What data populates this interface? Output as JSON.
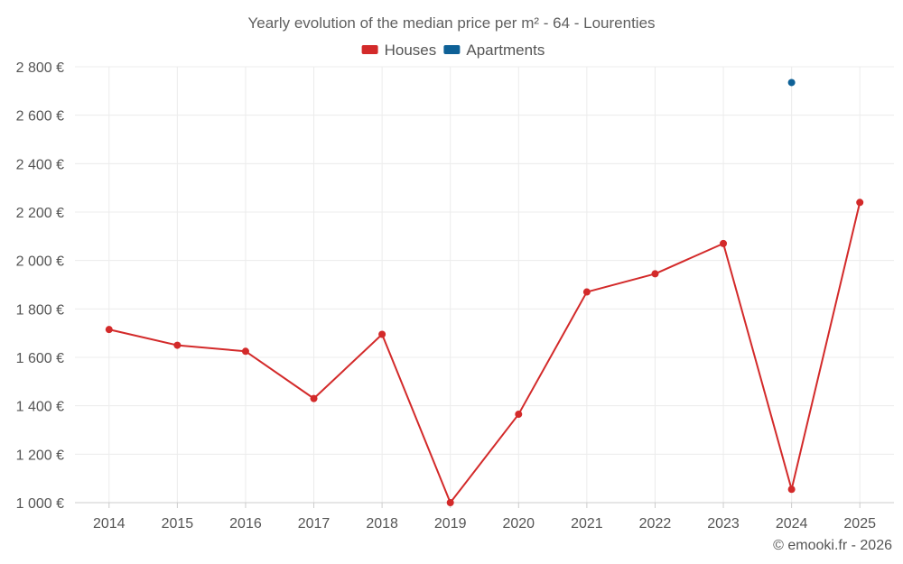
{
  "chart_data": {
    "type": "line",
    "title": "Yearly evolution of the median price per m² - 64 - Lourenties",
    "categories": [
      "2014",
      "2015",
      "2016",
      "2017",
      "2018",
      "2019",
      "2020",
      "2021",
      "2022",
      "2023",
      "2024",
      "2025"
    ],
    "series": [
      {
        "name": "Houses",
        "color": "#d32a2a",
        "values": [
          1715,
          1650,
          1625,
          1430,
          1695,
          1000,
          1365,
          1870,
          1945,
          2070,
          1055,
          2240
        ]
      },
      {
        "name": "Apartments",
        "color": "#0e6197",
        "values": [
          null,
          null,
          null,
          null,
          null,
          null,
          null,
          null,
          null,
          null,
          2735,
          null
        ]
      }
    ],
    "ylim": [
      1000,
      2800
    ],
    "y_ticks": [
      1000,
      1200,
      1400,
      1600,
      1800,
      2000,
      2200,
      2400,
      2600,
      2800
    ],
    "y_tick_labels": [
      "1 000 €",
      "1 200 €",
      "1 400 €",
      "1 600 €",
      "1 800 €",
      "2 000 €",
      "2 200 €",
      "2 400 €",
      "2 600 €",
      "2 800 €"
    ],
    "xlabel": "",
    "ylabel": "",
    "grid": true,
    "legend_position": "top-center"
  },
  "credit": "© emooki.fr - 2026"
}
